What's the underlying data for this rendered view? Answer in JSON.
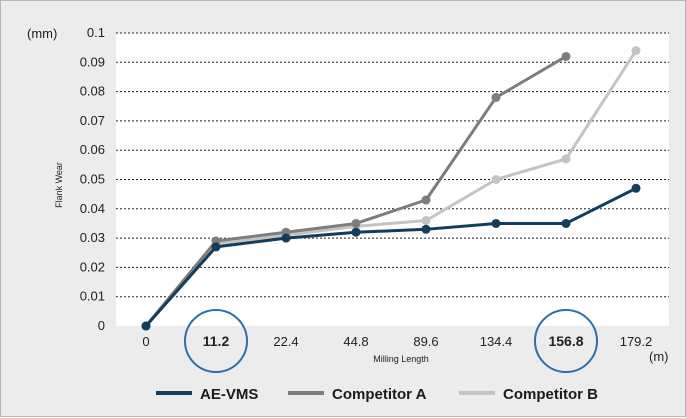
{
  "chart_data": {
    "type": "line",
    "y_unit": "(mm)",
    "x_unit": "(m)",
    "xlabel": "Milling Length",
    "ylabel": "Flank Wear",
    "categories": [
      "0",
      "11.2",
      "22.4",
      "44.8",
      "89.6",
      "134.4",
      "156.8",
      "179.2"
    ],
    "highlighted_categories": [
      "11.2",
      "156.8"
    ],
    "ylim": [
      0,
      0.1
    ],
    "y_ticks": [
      "0",
      "0.01",
      "0.02",
      "0.03",
      "0.04",
      "0.05",
      "0.06",
      "0.07",
      "0.08",
      "0.09",
      "0.1"
    ],
    "grid": true,
    "legend_position": "bottom",
    "series": [
      {
        "name": "AE-VMS",
        "color": "#123e5c",
        "values": [
          0,
          0.027,
          0.03,
          0.032,
          0.033,
          0.035,
          0.035,
          0.047
        ]
      },
      {
        "name": "Competitor A",
        "color": "#7d7d7d",
        "values": [
          0,
          0.029,
          0.032,
          0.035,
          0.043,
          0.078,
          0.092,
          null
        ]
      },
      {
        "name": "Competitor B",
        "color": "#c4c4c4",
        "values": [
          0,
          0.028,
          0.031,
          0.034,
          0.036,
          0.05,
          0.057,
          0.094
        ]
      }
    ],
    "highlight_color": "#2b6fad"
  }
}
